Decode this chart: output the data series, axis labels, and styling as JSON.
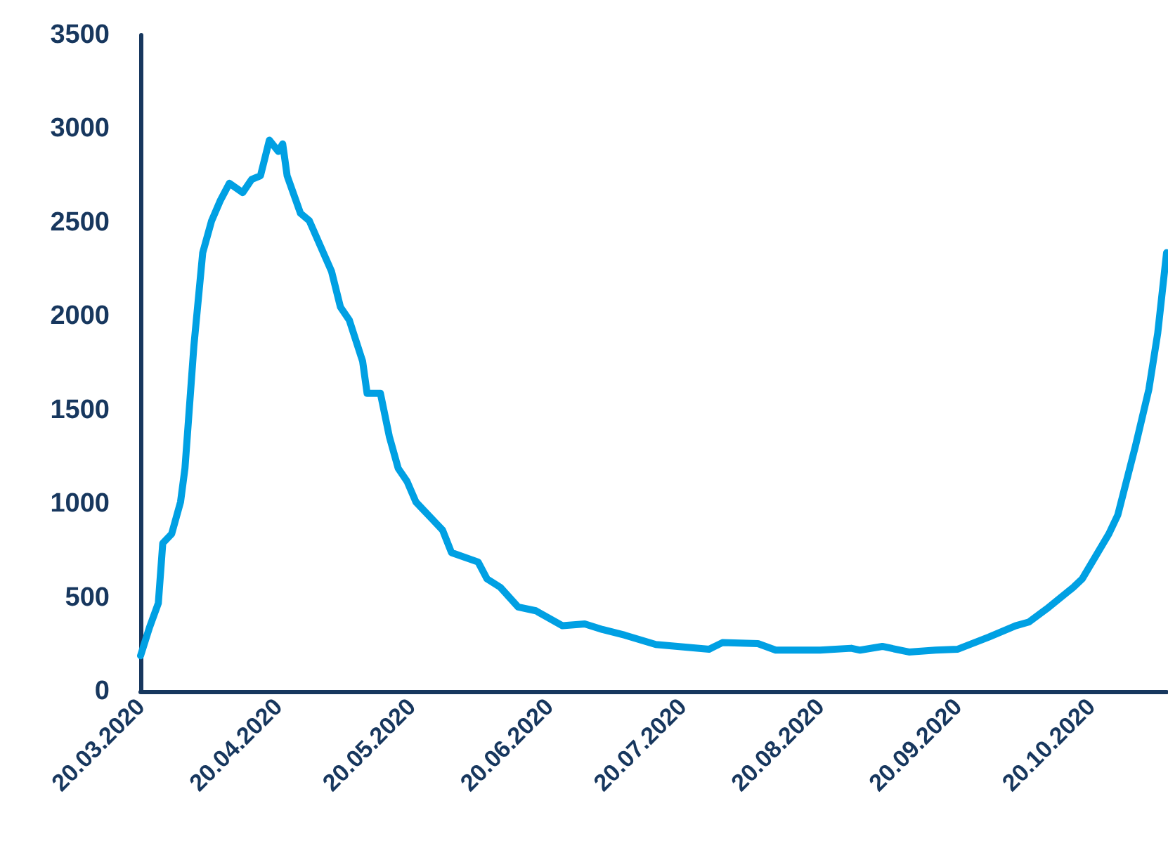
{
  "chart_data": {
    "type": "line",
    "color": "#00a0e3",
    "grid": false,
    "marker": "none",
    "line_style": "solid",
    "x": [
      "2020-03-20",
      "2020-03-22",
      "2020-03-24",
      "2020-03-25",
      "2020-03-27",
      "2020-03-29",
      "2020-03-30",
      "2020-04-01",
      "2020-04-03",
      "2020-04-05",
      "2020-04-07",
      "2020-04-09",
      "2020-04-12",
      "2020-04-14",
      "2020-04-16",
      "2020-04-18",
      "2020-04-20",
      "2020-04-21",
      "2020-04-22",
      "2020-04-25",
      "2020-04-27",
      "2020-05-02",
      "2020-05-04",
      "2020-05-06",
      "2020-05-09",
      "2020-05-10",
      "2020-05-13",
      "2020-05-15",
      "2020-05-17",
      "2020-05-19",
      "2020-05-21",
      "2020-05-25",
      "2020-05-27",
      "2020-05-29",
      "2020-06-04",
      "2020-06-06",
      "2020-06-09",
      "2020-06-13",
      "2020-06-17",
      "2020-06-23",
      "2020-06-28",
      "2020-07-02",
      "2020-07-07",
      "2020-07-14",
      "2020-07-26",
      "2020-07-29",
      "2020-08-06",
      "2020-08-10",
      "2020-08-20",
      "2020-08-27",
      "2020-08-29",
      "2020-09-03",
      "2020-09-09",
      "2020-09-15",
      "2020-09-20",
      "2020-09-27",
      "2020-10-03",
      "2020-10-06",
      "2020-10-10",
      "2020-10-16",
      "2020-10-18",
      "2020-10-24",
      "2020-10-26",
      "2020-10-30",
      "2020-11-02",
      "2020-11-04",
      "2020-11-06"
    ],
    "values": [
      190,
      340,
      470,
      790,
      840,
      1010,
      1190,
      1840,
      2340,
      2510,
      2620,
      2710,
      2660,
      2730,
      2750,
      2940,
      2880,
      2920,
      2750,
      2550,
      2510,
      2240,
      2050,
      1980,
      1760,
      1590,
      1590,
      1360,
      1190,
      1120,
      1010,
      910,
      860,
      740,
      690,
      600,
      555,
      450,
      430,
      350,
      360,
      330,
      300,
      250,
      225,
      260,
      255,
      220,
      220,
      230,
      220,
      240,
      210,
      220,
      225,
      290,
      350,
      370,
      440,
      555,
      600,
      840,
      940,
      1310,
      1610,
      1910,
      2340
    ],
    "xlim": [
      "2020-03-20",
      "2020-11-06"
    ],
    "xticks": [
      {
        "value": "2020-03-20",
        "label": "20.03.2020"
      },
      {
        "value": "2020-04-20",
        "label": "20.04.2020"
      },
      {
        "value": "2020-05-20",
        "label": "20.05.2020"
      },
      {
        "value": "2020-06-20",
        "label": "20.06.2020"
      },
      {
        "value": "2020-07-20",
        "label": "20.07.2020"
      },
      {
        "value": "2020-08-20",
        "label": "20.08.2020"
      },
      {
        "value": "2020-09-20",
        "label": "20.09.2020"
      },
      {
        "value": "2020-10-20",
        "label": "20.10.2020"
      }
    ],
    "ylim": [
      0,
      3500
    ],
    "yticks": [
      0,
      500,
      1000,
      1500,
      2000,
      2500,
      3000,
      3500
    ]
  }
}
